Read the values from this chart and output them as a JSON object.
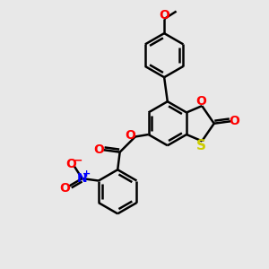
{
  "background_color": "#e8e8e8",
  "bond_color": "#000000",
  "atom_colors": {
    "O": "#ff0000",
    "S": "#cccc00",
    "N": "#0000ff",
    "C": "#000000"
  },
  "figsize": [
    3.0,
    3.0
  ],
  "dpi": 100
}
